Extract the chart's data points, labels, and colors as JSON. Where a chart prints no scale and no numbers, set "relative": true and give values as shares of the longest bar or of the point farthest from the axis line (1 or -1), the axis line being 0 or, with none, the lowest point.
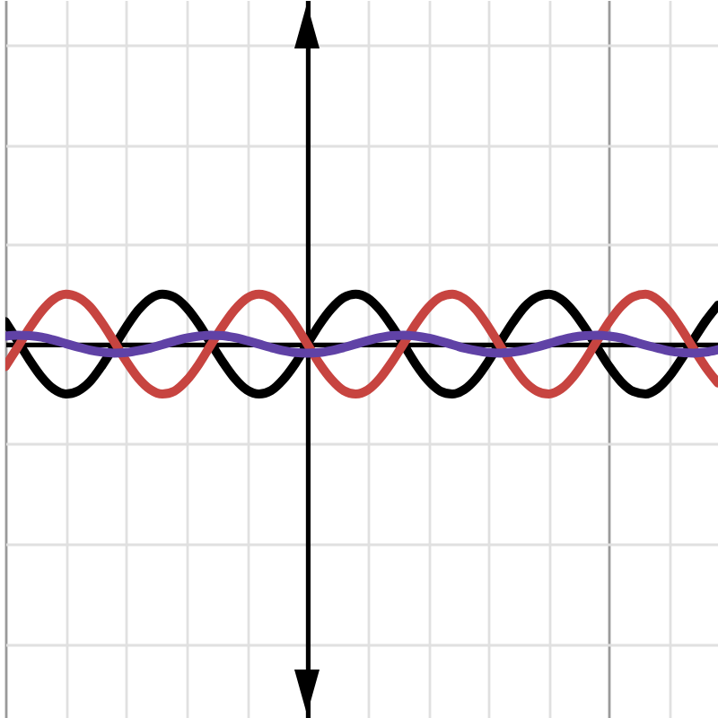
{
  "chart_data": {
    "type": "line",
    "relative": true,
    "grid": true,
    "categories": [
      null,
      null,
      null,
      null,
      null,
      null,
      null,
      null,
      null,
      null,
      null,
      null,
      null,
      null,
      null,
      null,
      null,
      null,
      null,
      null,
      null,
      null,
      null,
      null,
      null,
      null,
      null,
      null,
      null,
      null,
      null,
      null,
      null,
      null,
      null,
      null,
      null,
      null,
      null,
      null,
      null,
      null,
      null,
      null,
      null,
      null,
      null,
      null,
      null,
      null,
      null,
      null,
      null,
      null,
      null,
      null,
      null,
      null,
      null,
      null
    ],
    "series": [
      {
        "color": "#000000",
        "values": [
          0.45,
          0.07,
          -0.32,
          -0.66,
          -0.9,
          -1.0,
          -0.94,
          -0.75,
          -0.43,
          -0.05,
          0.34,
          0.68,
          0.91,
          1.0,
          0.94,
          0.73,
          0.41,
          0.02,
          -0.36,
          -0.69,
          -0.92,
          -1.0,
          -0.93,
          -0.71,
          -0.39,
          0,
          0.39,
          0.71,
          0.93,
          1.0,
          0.92,
          0.69,
          0.36,
          -0.02,
          -0.41,
          -0.73,
          -0.94,
          -1.0,
          -0.91,
          -0.68,
          -0.34,
          0.05,
          0.43,
          0.75,
          0.94,
          1.0,
          0.9,
          0.66,
          0.32,
          -0.07,
          -0.45,
          -0.76,
          -0.95,
          -1.0,
          -0.89,
          -0.64,
          -0.29,
          0.1,
          0.47,
          0.78
        ]
      },
      {
        "color": "#c74440",
        "values": [
          -0.45,
          -0.07,
          0.32,
          0.66,
          0.9,
          1.0,
          0.94,
          0.75,
          0.43,
          0.05,
          -0.34,
          -0.68,
          -0.91,
          -1.0,
          -0.94,
          -0.73,
          -0.41,
          -0.02,
          0.36,
          0.69,
          0.92,
          1.0,
          0.93,
          0.71,
          0.39,
          0,
          -0.39,
          -0.71,
          -0.93,
          -1.0,
          -0.92,
          -0.69,
          -0.36,
          0.02,
          0.41,
          0.73,
          0.94,
          1.0,
          0.91,
          0.68,
          0.34,
          -0.05,
          -0.43,
          -0.75,
          -0.94,
          -1.0,
          -0.9,
          -0.66,
          -0.32,
          0.07,
          0.45,
          0.76,
          0.95,
          1.0,
          0.89,
          0.64,
          0.29,
          -0.1,
          -0.47,
          -0.78
        ]
      },
      {
        "color": "#6042a6",
        "values": [
          0.16,
          0.18,
          0.17,
          0.14,
          0.08,
          0.01,
          -0.06,
          -0.12,
          -0.16,
          -0.18,
          -0.17,
          -0.13,
          -0.08,
          -0.01,
          0.06,
          0.12,
          0.16,
          0.18,
          0.17,
          0.13,
          0.07,
          0,
          -0.07,
          -0.13,
          -0.17,
          -0.18,
          -0.17,
          -0.13,
          -0.07,
          0,
          0.07,
          0.13,
          0.17,
          0.18,
          0.16,
          0.12,
          0.06,
          -0.01,
          -0.08,
          -0.13,
          -0.17,
          -0.18,
          -0.16,
          -0.12,
          -0.06,
          0.01,
          0.08,
          0.14,
          0.17,
          0.18,
          0.16,
          0.12,
          0.05,
          -0.02,
          -0.08,
          -0.14,
          -0.17,
          -0.18,
          -0.16,
          -0.11
        ]
      }
    ]
  }
}
